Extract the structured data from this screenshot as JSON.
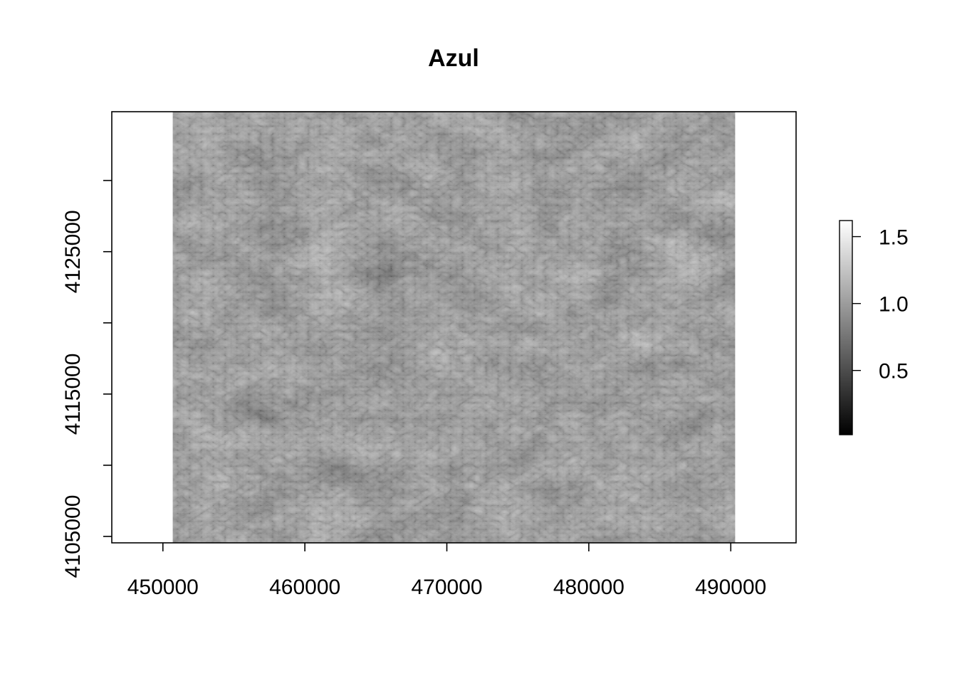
{
  "chart_data": {
    "type": "heatmap",
    "title": "Azul",
    "xlabel": "",
    "ylabel": "",
    "colormap": "grayscale",
    "x_axis": {
      "range": [
        446400,
        494600
      ],
      "ticks": [
        450000,
        460000,
        470000,
        480000,
        490000
      ],
      "tick_labels": [
        "450000",
        "460000",
        "470000",
        "480000",
        "490000"
      ]
    },
    "y_axis": {
      "range": [
        4104550,
        4134830
      ],
      "ticks": [
        4105000,
        4110000,
        4115000,
        4120000,
        4125000,
        4130000
      ],
      "tick_labels": [
        "4105000",
        "",
        "4115000",
        "",
        "4125000",
        ""
      ]
    },
    "raster_extent": {
      "xmin": 450700,
      "xmax": 490300,
      "ymin": 4104550,
      "ymax": 4134830
    },
    "legend": {
      "placement": "right",
      "range": [
        0.02,
        1.62
      ],
      "ticks": [
        0.5,
        1.0,
        1.5
      ],
      "tick_labels": [
        "0.5",
        "1.0",
        "1.5"
      ],
      "color_low": "#000000",
      "color_high": "#ffffff"
    }
  }
}
